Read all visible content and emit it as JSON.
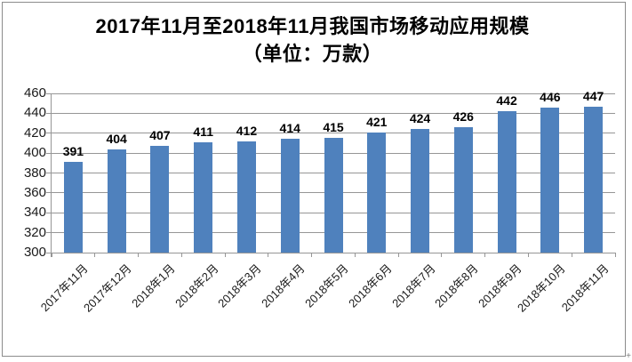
{
  "title": {
    "line1": "2017年11月至2018年11月我国市场移动应用规模",
    "line2": "（单位：万款）"
  },
  "decorations": {
    "resize_plus": "+"
  },
  "chart_data": {
    "type": "bar",
    "title": "2017年11月至2018年11月我国市场移动应用规模（单位：万款）",
    "categories": [
      "2017年11月",
      "2017年12月",
      "2018年1月",
      "2018年2月",
      "2018年3月",
      "2018年4月",
      "2018年5月",
      "2018年6月",
      "2018年7月",
      "2018年8月",
      "2018年9月",
      "2018年10月",
      "2018年11月"
    ],
    "values": [
      391,
      404,
      407,
      411,
      412,
      414,
      415,
      421,
      424,
      426,
      442,
      446,
      447
    ],
    "xlabel": "",
    "ylabel": "",
    "ylim": [
      300,
      460
    ],
    "y_ticks": [
      300,
      320,
      340,
      360,
      380,
      400,
      420,
      440,
      460
    ],
    "grid": true,
    "legend": false,
    "data_labels": true,
    "bar_color": "#4F81BD",
    "grid_color": "#969696",
    "label_rotation_deg": -45
  }
}
